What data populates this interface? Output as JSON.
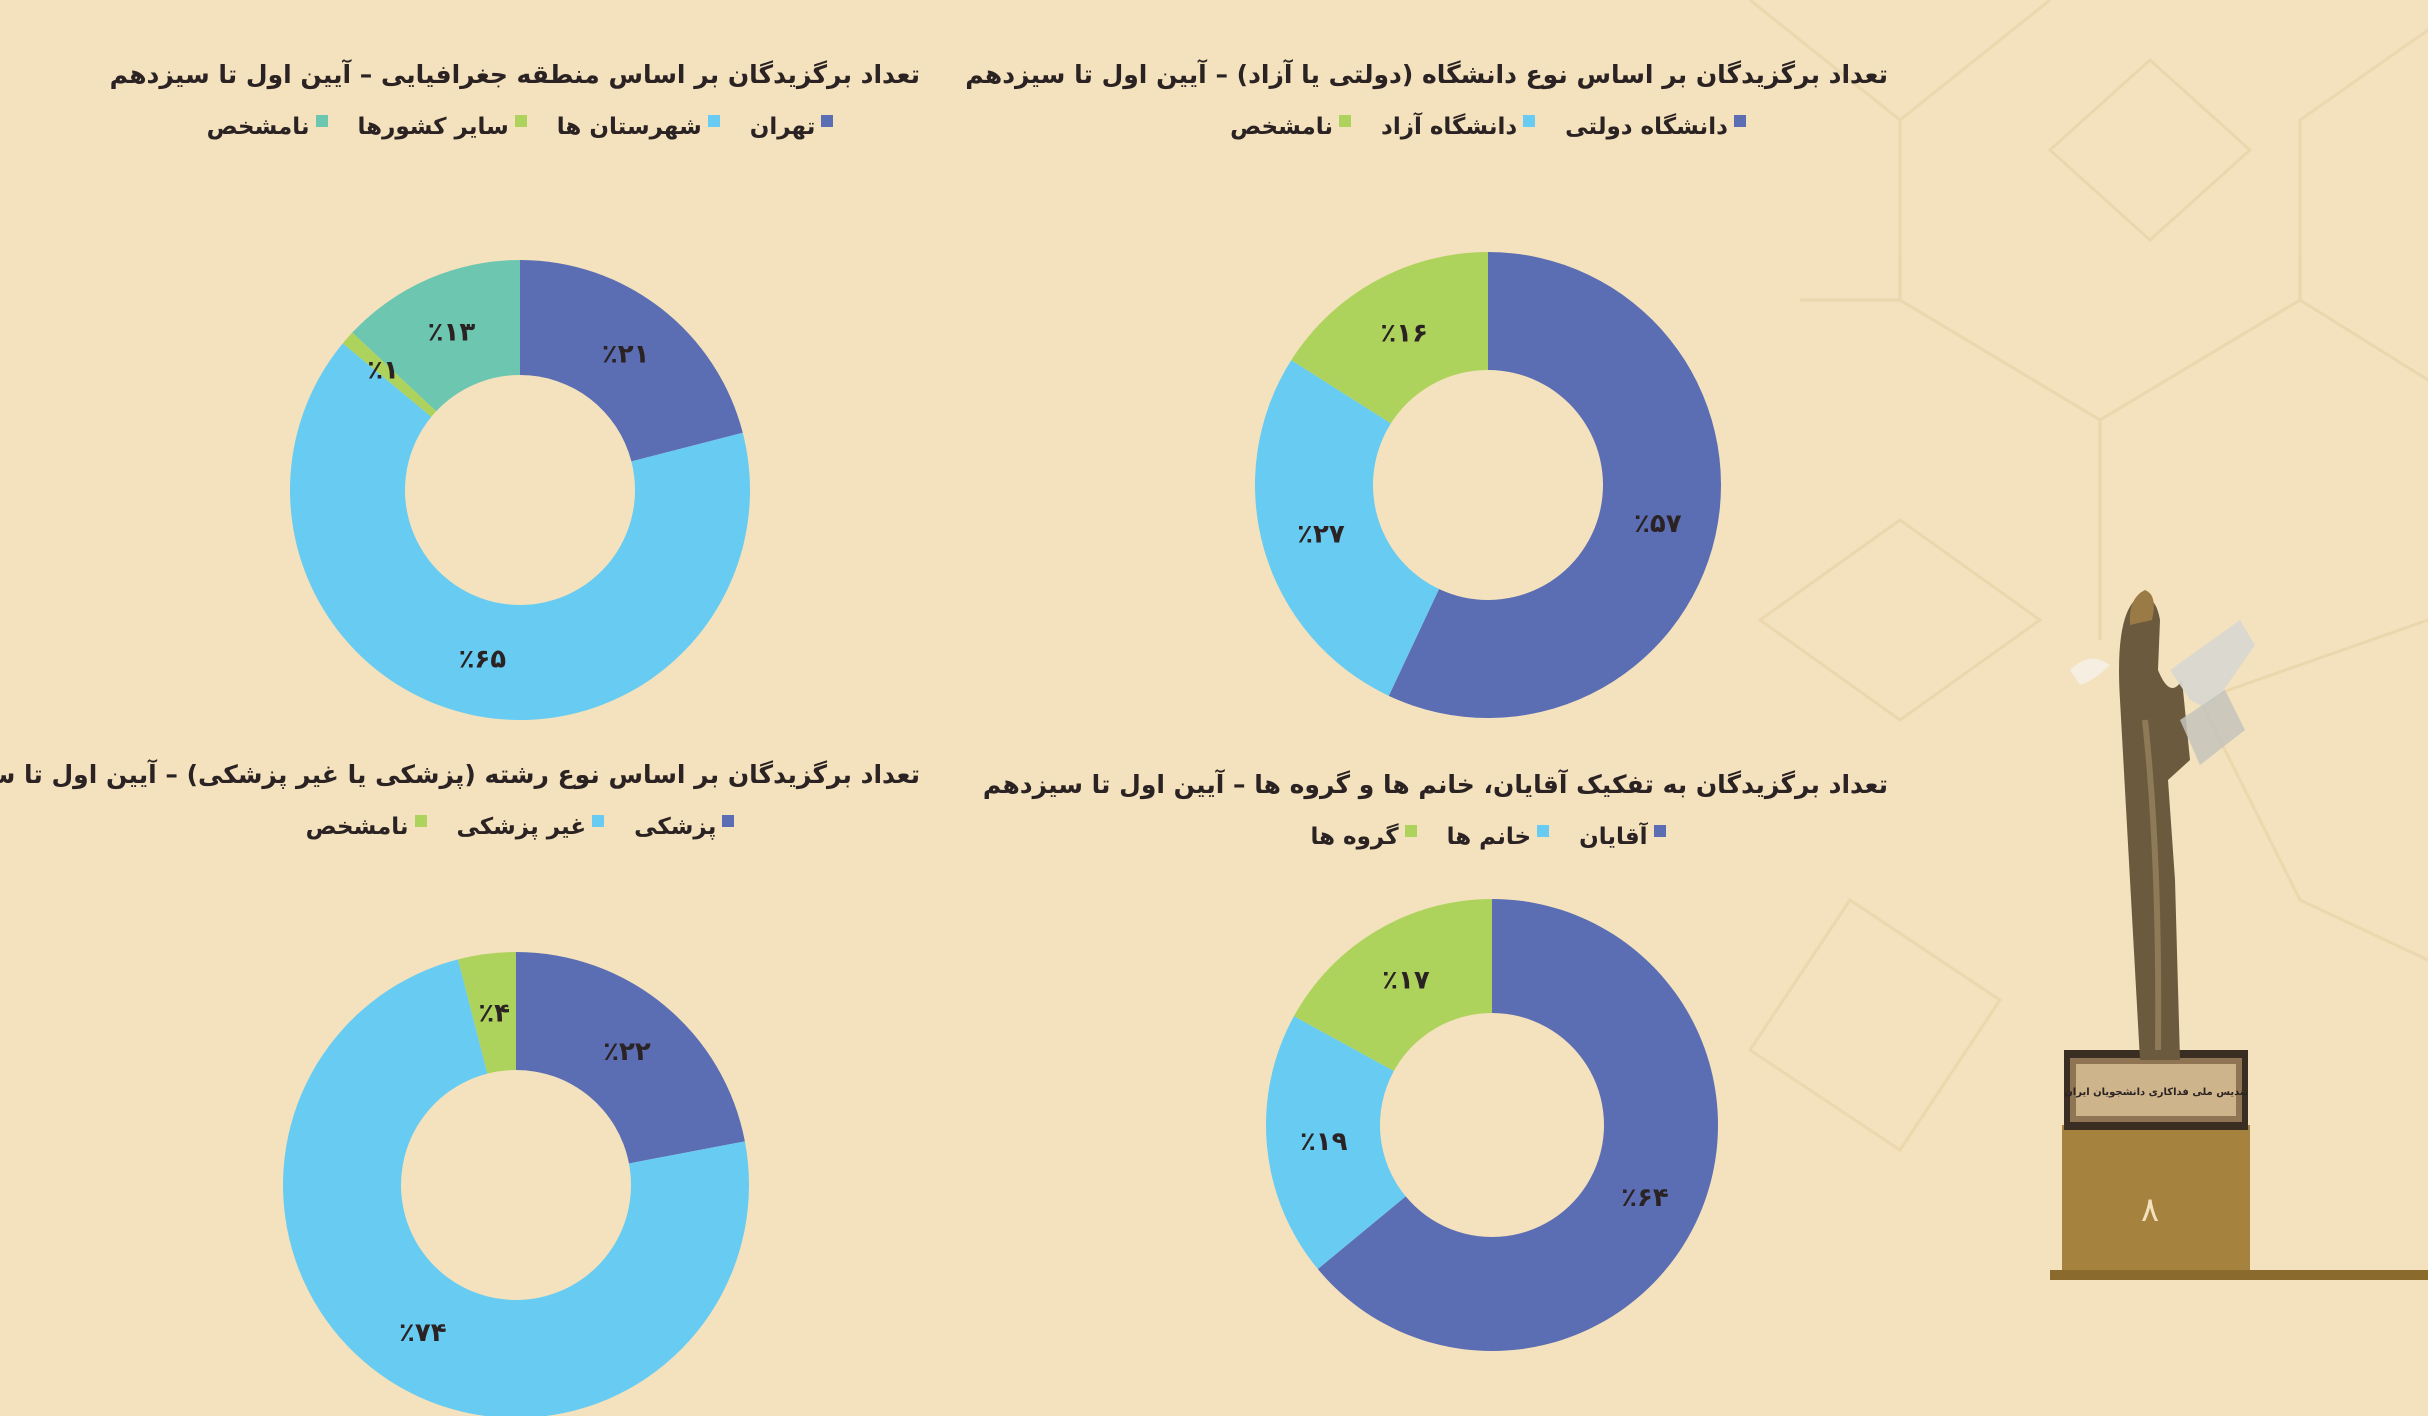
{
  "page_number": "۸",
  "trophy_plaque_text": "تندیس ملی فداکاری دانشجویان ایران",
  "colors": {
    "background": "#f3e2bd",
    "dark_blue": "#5b6db3",
    "light_blue": "#67cbf2",
    "green": "#aed35c",
    "teal": "#6dc6b0"
  },
  "charts": [
    {
      "title": "تعداد برگزیدگان بر اساس منطقه جغرافیایی – آیین اول تا سیزدهم",
      "legend": [
        {
          "label": "تهران",
          "color": "#5b6db3"
        },
        {
          "label": "شهرستان ها",
          "color": "#67cbf2"
        },
        {
          "label": "سایر کشورها",
          "color": "#aed35c"
        },
        {
          "label": "نامشخص",
          "color": "#6dc6b0"
        }
      ]
    },
    {
      "title": "تعداد برگزیدگان بر اساس نوع دانشگاه (دولتی یا آزاد) – آیین اول تا سیزدهم",
      "legend": [
        {
          "label": "دانشگاه دولتی",
          "color": "#5b6db3"
        },
        {
          "label": "دانشگاه آزاد",
          "color": "#67cbf2"
        },
        {
          "label": "نامشخص",
          "color": "#aed35c"
        }
      ]
    },
    {
      "title": "تعداد برگزیدگان بر اساس نوع رشته (پزشکی یا غیر پزشکی) – آیین اول تا سیزدهم",
      "legend": [
        {
          "label": "پزشکی",
          "color": "#5b6db3"
        },
        {
          "label": "غیر پزشکی",
          "color": "#67cbf2"
        },
        {
          "label": "نامشخص",
          "color": "#aed35c"
        }
      ]
    },
    {
      "title": "تعداد برگزیدگان به تفکیک آقایان، خانم ها و گروه ها – آیین اول تا سیزدهم",
      "legend": [
        {
          "label": "آقایان",
          "color": "#5b6db3"
        },
        {
          "label": "خانم ها",
          "color": "#67cbf2"
        },
        {
          "label": "گروه ها",
          "color": "#aed35c"
        }
      ]
    }
  ],
  "chart_data": [
    {
      "type": "pie",
      "title": "تعداد برگزیدگان بر اساس منطقه جغرافیایی – آیین اول تا سیزدهم",
      "categories": [
        "تهران",
        "شهرستان ها",
        "سایر کشورها",
        "نامشخص"
      ],
      "values": [
        21,
        65,
        1,
        13
      ],
      "labels": [
        "٪۲۱",
        "٪۶۵",
        "٪۱",
        "٪۱۳"
      ],
      "colors": [
        "#5b6db3",
        "#67cbf2",
        "#aed35c",
        "#6dc6b0"
      ],
      "legend": "top"
    },
    {
      "type": "pie",
      "title": "تعداد برگزیدگان بر اساس نوع دانشگاه (دولتی یا آزاد) – آیین اول تا سیزدهم",
      "categories": [
        "دانشگاه دولتی",
        "دانشگاه آزاد",
        "نامشخص"
      ],
      "values": [
        57,
        27,
        16
      ],
      "labels": [
        "٪۵۷",
        "٪۲۷",
        "٪۱۶"
      ],
      "colors": [
        "#5b6db3",
        "#67cbf2",
        "#aed35c"
      ],
      "legend": "top"
    },
    {
      "type": "pie",
      "title": "تعداد برگزیدگان بر اساس نوع رشته (پزشکی یا غیر پزشکی) – آیین اول تا سیزدهم",
      "categories": [
        "پزشکی",
        "غیر پزشکی",
        "نامشخص"
      ],
      "values": [
        22,
        74,
        4
      ],
      "labels": [
        "٪۲۲",
        "٪۷۴",
        "٪۴"
      ],
      "colors": [
        "#5b6db3",
        "#67cbf2",
        "#aed35c"
      ],
      "legend": "top"
    },
    {
      "type": "pie",
      "title": "تعداد برگزیدگان به تفکیک آقایان، خانم ها و گروه ها – آیین اول تا سیزدهم",
      "categories": [
        "آقایان",
        "خانم ها",
        "گروه ها"
      ],
      "values": [
        64,
        19,
        17
      ],
      "labels": [
        "٪۶۴",
        "٪۱۹",
        "٪۱۷"
      ],
      "colors": [
        "#5b6db3",
        "#67cbf2",
        "#aed35c"
      ],
      "legend": "top"
    }
  ]
}
